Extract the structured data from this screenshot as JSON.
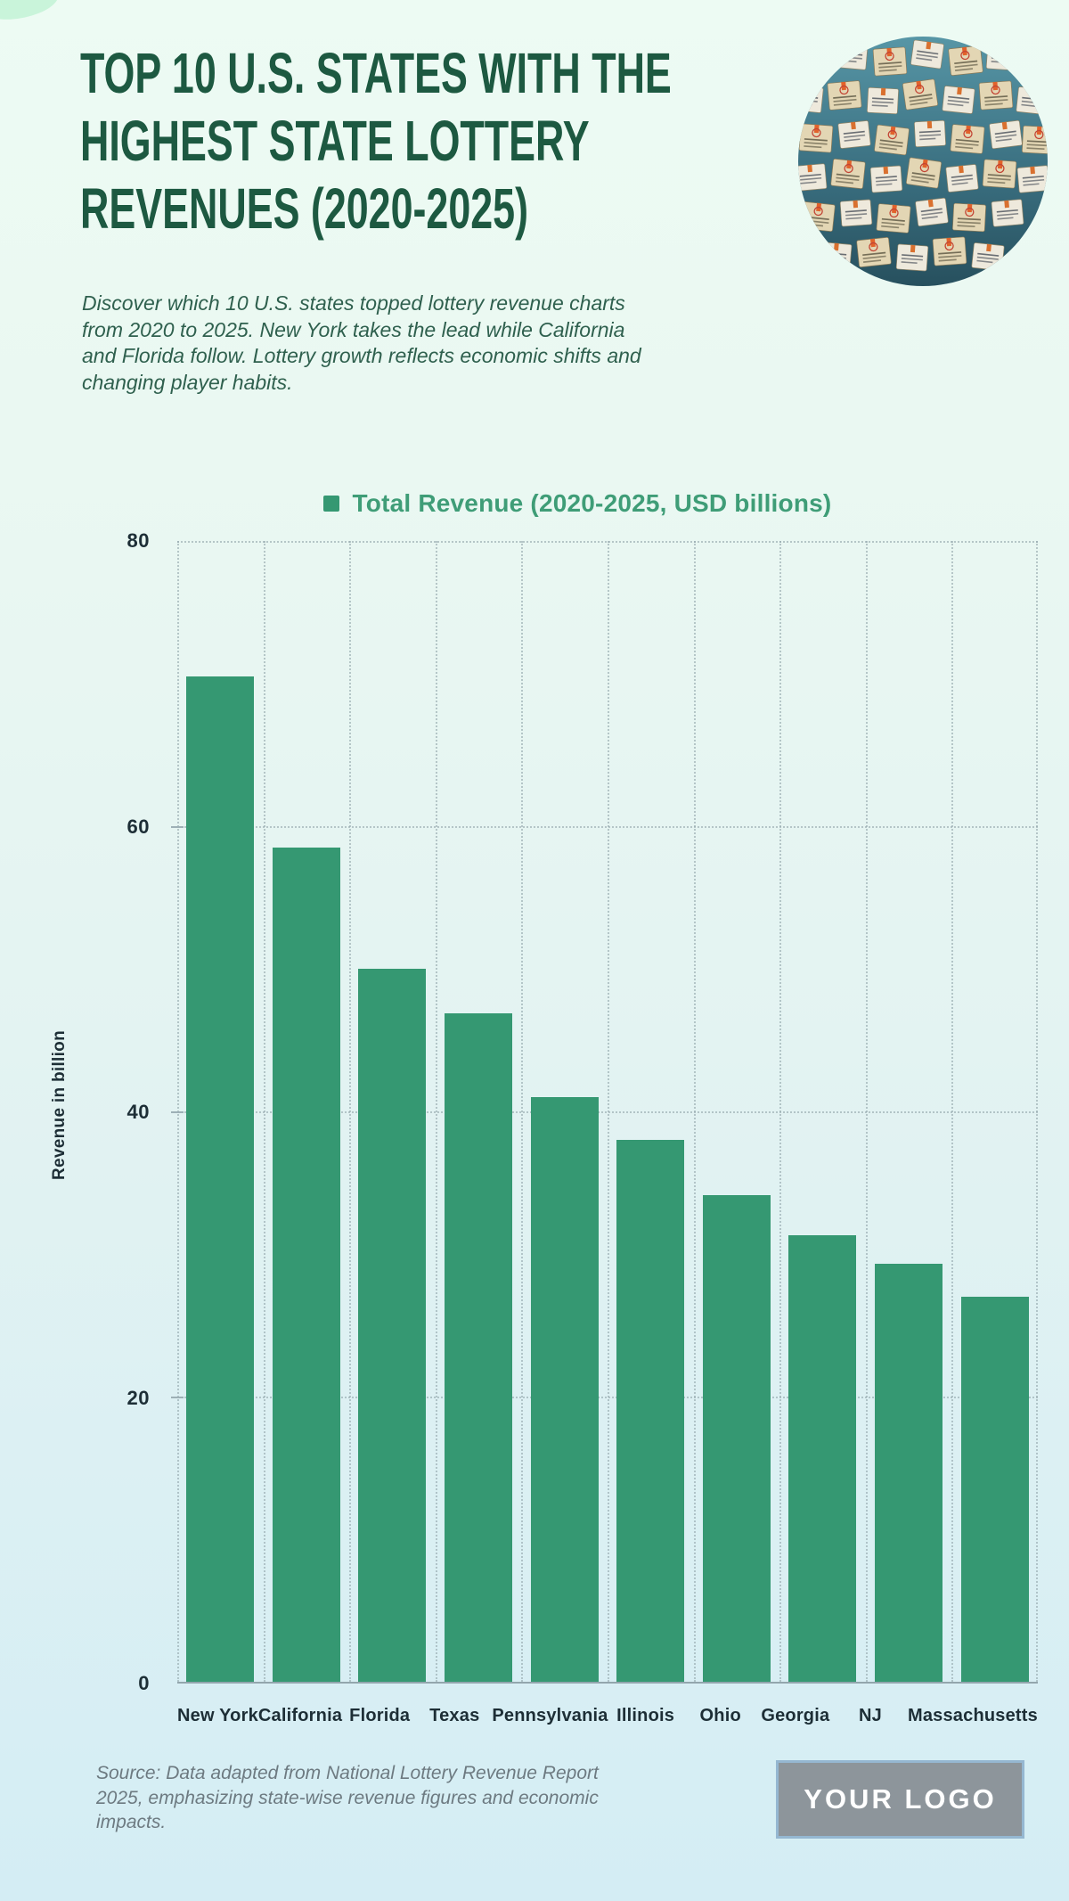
{
  "page": {
    "title": "TOP 10 U.S. STATES WITH THE\nHIGHEST STATE LOTTERY\nREVENUES (2020-2025)",
    "description": "Discover which 10 U.S. states topped lottery revenue charts\nfrom 2020 to 2025. New York takes the lead while California\nand Florida follow. Lottery growth reflects economic shifts and\nchanging player habits.",
    "source_note": "Source: Data adapted from National Lottery Revenue Report\n2025, emphasizing state-wise revenue figures and economic\nimpacts.",
    "logo_text": "YOUR LOGO"
  },
  "hero_image": {
    "name": "lottery-tickets-photo"
  },
  "chart_data": {
    "type": "bar",
    "series_name": "Total Revenue (2020-2025, USD billions)",
    "categories": [
      "New York",
      "California",
      "Florida",
      "Texas",
      "Pennsylvania",
      "Illinois",
      "Ohio",
      "Georgia",
      "NJ",
      "Massachusetts"
    ],
    "values": [
      70.5,
      58.5,
      50,
      46.9,
      41,
      38,
      34.1,
      31.3,
      29.3,
      27
    ],
    "title": "",
    "xlabel": "",
    "ylabel": "Revenue in billion",
    "ylim": [
      0,
      80
    ],
    "yticks": [
      80,
      60,
      40,
      20,
      0
    ],
    "grid": "dotted",
    "legend_position": "top-center",
    "bar_color": "#359872"
  },
  "colors": {
    "title": "#1d5941",
    "legend_text": "#3f9d77",
    "bar": "#359872",
    "axis_text": "#1d2e36",
    "source_text": "#6d7a81",
    "background_top": "#edfbf3",
    "background_bottom": "#d4edf4"
  }
}
